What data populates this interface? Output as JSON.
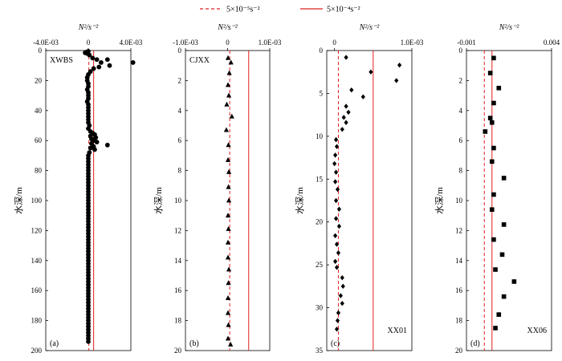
{
  "legend": [
    {
      "label": "5×10⁻⁵s⁻²",
      "style": "dashed",
      "color": "#e02020"
    },
    {
      "label": "5×10⁻⁴s⁻²",
      "style": "solid",
      "color": "#e02020"
    }
  ],
  "shared": {
    "x_unit": "N²/s⁻²",
    "y_label": "水深/m",
    "line_color": "#e02020"
  },
  "chart_data": [
    {
      "type": "scatter",
      "panel": "(a)",
      "station": "XWBS",
      "marker": "circle",
      "xlim": [
        -0.004,
        0.004
      ],
      "x_ticks": [
        {
          "v": -0.004,
          "t": "-4.0E-03"
        },
        {
          "v": 0,
          "t": "0"
        },
        {
          "v": 0.004,
          "t": "4.0E-03"
        }
      ],
      "ylim": [
        0,
        200
      ],
      "y_ticks": [
        0,
        20,
        40,
        60,
        80,
        100,
        120,
        140,
        160,
        180,
        200
      ],
      "lines": [
        5e-05,
        0.0005
      ],
      "points": [
        [
          0.0,
          0.5
        ],
        [
          -0.0002,
          1
        ],
        [
          -0.0003,
          1.5
        ],
        [
          -0.0001,
          2
        ],
        [
          0.0001,
          3
        ],
        [
          0.0004,
          5
        ],
        [
          0.0008,
          6
        ],
        [
          0.0018,
          6
        ],
        [
          0.0042,
          8
        ],
        [
          0.0012,
          8
        ],
        [
          0.002,
          10
        ],
        [
          0.001,
          11
        ],
        [
          0.0005,
          12
        ],
        [
          0.0002,
          14
        ],
        [
          0.0,
          16
        ],
        [
          -0.0001,
          18
        ],
        [
          -0.0001,
          20
        ],
        [
          0.0,
          22
        ],
        [
          0.0,
          24
        ],
        [
          -0.0001,
          26
        ],
        [
          0.0,
          28
        ],
        [
          0.0,
          30
        ],
        [
          0.0,
          32
        ],
        [
          -0.0001,
          34
        ],
        [
          0.0,
          36
        ],
        [
          0.0,
          38
        ],
        [
          0.0,
          40
        ],
        [
          0.0,
          42
        ],
        [
          0.0,
          44
        ],
        [
          0.0,
          46
        ],
        [
          0.0,
          48
        ],
        [
          0.0001,
          50
        ],
        [
          0.0,
          52
        ],
        [
          0.0002,
          54
        ],
        [
          0.0004,
          55
        ],
        [
          0.0006,
          56
        ],
        [
          0.0002,
          57
        ],
        [
          0.0007,
          58
        ],
        [
          0.0003,
          59
        ],
        [
          0.0005,
          60
        ],
        [
          0.0008,
          61
        ],
        [
          0.0003,
          62
        ],
        [
          0.0018,
          63
        ],
        [
          0.0005,
          64
        ],
        [
          0.0002,
          65
        ],
        [
          0.0006,
          66
        ],
        [
          0.0001,
          68
        ],
        [
          0.0,
          70
        ],
        [
          0.0,
          72
        ],
        [
          0.0,
          74
        ],
        [
          0.0,
          76
        ],
        [
          0.0,
          78
        ],
        [
          0.0,
          80
        ],
        [
          0.0,
          82
        ],
        [
          0.0,
          84
        ],
        [
          0.0,
          86
        ],
        [
          0.0,
          88
        ],
        [
          0.0,
          90
        ],
        [
          0.0,
          92
        ],
        [
          0.0,
          94
        ],
        [
          0.0,
          96
        ],
        [
          0.0,
          98
        ],
        [
          0.0,
          100
        ],
        [
          0.0,
          102
        ],
        [
          0.0,
          104
        ],
        [
          0.0,
          106
        ],
        [
          0.0,
          108
        ],
        [
          0.0,
          110
        ],
        [
          0.0,
          112
        ],
        [
          0.0,
          114
        ],
        [
          0.0,
          116
        ],
        [
          0.0,
          118
        ],
        [
          0.0,
          120
        ],
        [
          0.0,
          122
        ],
        [
          0.0,
          124
        ],
        [
          0.0,
          126
        ],
        [
          0.0,
          128
        ],
        [
          0.0,
          130
        ],
        [
          0.0,
          132
        ],
        [
          0.0,
          134
        ],
        [
          0.0,
          136
        ],
        [
          0.0,
          138
        ],
        [
          0.0,
          140
        ],
        [
          0.0,
          142
        ],
        [
          0.0,
          144
        ],
        [
          0.0,
          146
        ],
        [
          0.0,
          148
        ],
        [
          0.0,
          150
        ],
        [
          0.0,
          152
        ],
        [
          0.0,
          154
        ],
        [
          0.0,
          156
        ],
        [
          0.0,
          158
        ],
        [
          0.0,
          160
        ],
        [
          0.0,
          162
        ],
        [
          0.0,
          164
        ],
        [
          0.0,
          166
        ],
        [
          0.0,
          168
        ],
        [
          0.0,
          170
        ],
        [
          0.0,
          172
        ],
        [
          0.0,
          174
        ],
        [
          0.0,
          176
        ],
        [
          0.0,
          178
        ],
        [
          0.0,
          180
        ],
        [
          0.0,
          182
        ],
        [
          0.0,
          184
        ],
        [
          0.0,
          186
        ],
        [
          0.0,
          188
        ],
        [
          0.0,
          190
        ],
        [
          0.0,
          192
        ],
        [
          0.0,
          194
        ]
      ]
    },
    {
      "type": "scatter",
      "panel": "(b)",
      "station": "CJXX",
      "marker": "triangle",
      "xlim": [
        -0.001,
        0.001
      ],
      "x_ticks": [
        {
          "v": -0.001,
          "t": "-1.0E-03"
        },
        {
          "v": 0,
          "t": "0"
        },
        {
          "v": 0.001,
          "t": "1.0E-03"
        }
      ],
      "ylim": [
        0,
        20
      ],
      "y_ticks": [
        0,
        2,
        4,
        6,
        8,
        10,
        12,
        14,
        16,
        18,
        20
      ],
      "lines": [
        5e-05,
        0.0005
      ],
      "points": [
        [
          1e-05,
          0.5
        ],
        [
          8e-05,
          0.8
        ],
        [
          4e-05,
          1.5
        ],
        [
          1e-05,
          2.3
        ],
        [
          3e-05,
          3.0
        ],
        [
          -2e-05,
          3.6
        ],
        [
          0.0001,
          4.4
        ],
        [
          -3e-05,
          5.3
        ],
        [
          2e-05,
          6.3
        ],
        [
          1e-05,
          7.3
        ],
        [
          3e-05,
          8.1
        ],
        [
          2e-05,
          9.1
        ],
        [
          3e-05,
          10.0
        ],
        [
          1e-05,
          11.0
        ],
        [
          2e-05,
          11.9
        ],
        [
          1e-05,
          12.8
        ],
        [
          1e-05,
          13.8
        ],
        [
          3e-05,
          14.6
        ],
        [
          2e-05,
          15.5
        ],
        [
          1e-05,
          16.5
        ],
        [
          1e-05,
          17.5
        ],
        [
          2e-05,
          18.3
        ],
        [
          1e-05,
          19.2
        ],
        [
          7e-05,
          19.6
        ]
      ]
    },
    {
      "type": "scatter",
      "panel": "(c)",
      "station": "XX01",
      "marker": "diamond",
      "xlim": [
        -0.0001,
        0.001
      ],
      "x_ticks": [
        {
          "v": 0,
          "t": "0"
        },
        {
          "v": 0.001,
          "t": "1.0E-03"
        }
      ],
      "ylim": [
        0,
        35
      ],
      "y_ticks": [
        0,
        5,
        10,
        15,
        20,
        25,
        30,
        35
      ],
      "lines": [
        5e-05,
        0.0005
      ],
      "points": [
        [
          0.00015,
          0.8
        ],
        [
          0.00084,
          1.7
        ],
        [
          0.00047,
          2.5
        ],
        [
          0.0008,
          3.5
        ],
        [
          0.00022,
          4.6
        ],
        [
          0.00037,
          5.4
        ],
        [
          0.00015,
          6.5
        ],
        [
          0.00018,
          7.2
        ],
        [
          0.00012,
          7.8
        ],
        [
          0.00015,
          8.4
        ],
        [
          0.0001,
          9.2
        ],
        [
          2e-05,
          10.4
        ],
        [
          3e-05,
          11.2
        ],
        [
          1e-05,
          12.2
        ],
        [
          0.0,
          13.2
        ],
        [
          2e-05,
          14.2
        ],
        [
          1e-05,
          15.3
        ],
        [
          4e-05,
          16.2
        ],
        [
          2e-05,
          17.5
        ],
        [
          6e-05,
          18.5
        ],
        [
          2e-05,
          19.6
        ],
        [
          6e-05,
          20.5
        ],
        [
          1e-05,
          21.6
        ],
        [
          3e-05,
          22.6
        ],
        [
          5e-05,
          23.6
        ],
        [
          1e-05,
          24.6
        ],
        [
          3e-05,
          25.3
        ],
        [
          0.0001,
          26.5
        ],
        [
          0.00011,
          27.5
        ],
        [
          8e-05,
          28.6
        ],
        [
          0.0001,
          29.5
        ],
        [
          5e-05,
          30.6
        ],
        [
          4e-05,
          31.5
        ],
        [
          3e-05,
          32.5
        ]
      ]
    },
    {
      "type": "scatter",
      "panel": "(d)",
      "station": "XX06",
      "marker": "square",
      "xlim": [
        -0.001,
        0.004
      ],
      "x_ticks": [
        {
          "v": -0.001,
          "t": "-0.001"
        },
        {
          "v": 0.004,
          "t": "0.004"
        }
      ],
      "ylim": [
        0,
        20
      ],
      "y_ticks": [
        0,
        2,
        4,
        6,
        8,
        10,
        12,
        14,
        16,
        18,
        20
      ],
      "lines": [
        5e-05,
        0.0005
      ],
      "points": [
        [
          0.0006,
          0.5
        ],
        [
          0.0004,
          1.5
        ],
        [
          0.0009,
          2.5
        ],
        [
          0.0006,
          3.5
        ],
        [
          0.0004,
          4.5
        ],
        [
          0.0005,
          4.8
        ],
        [
          0.0001,
          5.4
        ],
        [
          0.0006,
          6.5
        ],
        [
          0.0005,
          7.4
        ],
        [
          0.0012,
          8.5
        ],
        [
          0.0006,
          9.6
        ],
        [
          0.0005,
          10.6
        ],
        [
          0.0012,
          11.6
        ],
        [
          0.0006,
          12.6
        ],
        [
          0.0011,
          13.6
        ],
        [
          0.0007,
          14.6
        ],
        [
          0.0018,
          15.4
        ],
        [
          0.0012,
          16.4
        ],
        [
          0.0009,
          17.6
        ],
        [
          0.0007,
          18.5
        ]
      ]
    }
  ]
}
